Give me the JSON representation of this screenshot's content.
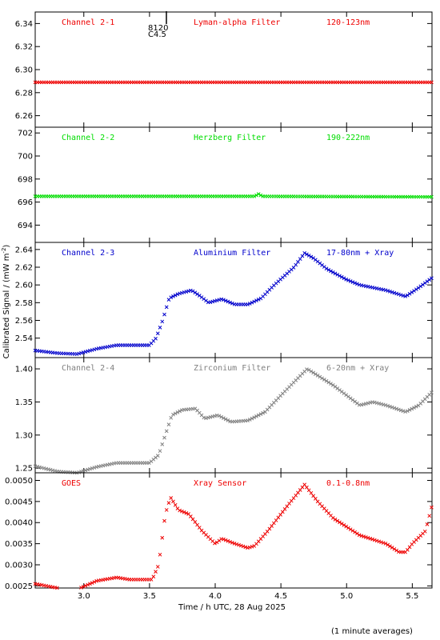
{
  "axes": {
    "ylabel_main": "Calibrated Signal / (mW m",
    "ylabel_sup": "-2",
    "ylabel_close": ")",
    "xlabel": "Time / h UTC, 28 Aug 2025",
    "footer": "(1 minute averages)",
    "xlim": [
      2.63,
      5.65
    ],
    "xticks": [
      3.0,
      3.5,
      4.0,
      4.5,
      5.0,
      5.5
    ],
    "xtick_labels": [
      "3.0",
      "3.5",
      "4.0",
      "4.5",
      "5.0",
      "5.5"
    ]
  },
  "marker_annotation": {
    "line1": "8120",
    "line2": "C4.5"
  },
  "chart_data": [
    {
      "type": "scatter",
      "label_left": "Channel 2-1",
      "label_mid": "Lyman-alpha Filter",
      "label_right": "120-123nm",
      "color": "#ee0000",
      "ylim": [
        6.25,
        6.35
      ],
      "yticks": [
        6.26,
        6.28,
        6.3,
        6.32,
        6.34
      ],
      "ytick_labels": [
        "6.26",
        "6.28",
        "6.30",
        "6.32",
        "6.34"
      ],
      "knots": [
        [
          2.63,
          6.289
        ],
        [
          5.65,
          6.289
        ]
      ]
    },
    {
      "type": "scatter",
      "label_left": "Channel 2-2",
      "label_mid": "Herzberg Filter",
      "label_right": "190-222nm",
      "color": "#00dd00",
      "ylim": [
        692.5,
        702.5
      ],
      "yticks": [
        694,
        696,
        698,
        700,
        702
      ],
      "ytick_labels": [
        "694",
        "696",
        "698",
        "700",
        "702"
      ],
      "knots": [
        [
          2.63,
          696.5
        ],
        [
          4.3,
          696.5
        ],
        [
          4.33,
          696.7
        ],
        [
          4.36,
          696.5
        ],
        [
          5.65,
          696.45
        ]
      ]
    },
    {
      "type": "scatter",
      "label_left": "Channel 2-3",
      "label_mid": "Aluminium Filter",
      "label_right": "17-80nm + Xray",
      "color": "#0000cc",
      "ylim": [
        2.518,
        2.648
      ],
      "yticks": [
        2.54,
        2.56,
        2.58,
        2.6,
        2.62,
        2.64
      ],
      "ytick_labels": [
        "2.54",
        "2.56",
        "2.58",
        "2.60",
        "2.62",
        "2.64"
      ],
      "knots": [
        [
          2.63,
          2.526
        ],
        [
          2.8,
          2.523
        ],
        [
          2.95,
          2.522
        ],
        [
          3.1,
          2.528
        ],
        [
          3.25,
          2.532
        ],
        [
          3.5,
          2.532
        ],
        [
          3.55,
          2.54
        ],
        [
          3.6,
          2.56
        ],
        [
          3.65,
          2.585
        ],
        [
          3.72,
          2.59
        ],
        [
          3.82,
          2.594
        ],
        [
          3.88,
          2.588
        ],
        [
          3.95,
          2.58
        ],
        [
          4.05,
          2.584
        ],
        [
          4.15,
          2.578
        ],
        [
          4.25,
          2.578
        ],
        [
          4.35,
          2.585
        ],
        [
          4.45,
          2.6
        ],
        [
          4.6,
          2.62
        ],
        [
          4.68,
          2.636
        ],
        [
          4.75,
          2.63
        ],
        [
          4.85,
          2.618
        ],
        [
          5.0,
          2.606
        ],
        [
          5.1,
          2.6
        ],
        [
          5.2,
          2.597
        ],
        [
          5.3,
          2.594
        ],
        [
          5.45,
          2.587
        ],
        [
          5.55,
          2.597
        ],
        [
          5.65,
          2.608
        ]
      ]
    },
    {
      "type": "scatter",
      "label_left": "Channel 2-4",
      "label_mid": "Zirconium Filter",
      "label_right": "6-20nm + Xray",
      "color": "#808080",
      "ylim": [
        1.243,
        1.417
      ],
      "yticks": [
        1.25,
        1.3,
        1.35,
        1.4
      ],
      "ytick_labels": [
        "1.25",
        "1.30",
        "1.35",
        "1.40"
      ],
      "knots": [
        [
          2.63,
          1.253
        ],
        [
          2.8,
          1.245
        ],
        [
          2.95,
          1.243
        ],
        [
          3.1,
          1.252
        ],
        [
          3.25,
          1.258
        ],
        [
          3.5,
          1.258
        ],
        [
          3.57,
          1.27
        ],
        [
          3.62,
          1.3
        ],
        [
          3.67,
          1.33
        ],
        [
          3.75,
          1.338
        ],
        [
          3.85,
          1.34
        ],
        [
          3.92,
          1.325
        ],
        [
          4.02,
          1.33
        ],
        [
          4.12,
          1.32
        ],
        [
          4.25,
          1.322
        ],
        [
          4.38,
          1.335
        ],
        [
          4.5,
          1.36
        ],
        [
          4.6,
          1.38
        ],
        [
          4.7,
          1.4
        ],
        [
          4.78,
          1.39
        ],
        [
          4.9,
          1.375
        ],
        [
          5.0,
          1.36
        ],
        [
          5.1,
          1.345
        ],
        [
          5.2,
          1.35
        ],
        [
          5.3,
          1.345
        ],
        [
          5.45,
          1.335
        ],
        [
          5.55,
          1.345
        ],
        [
          5.65,
          1.365
        ]
      ]
    },
    {
      "type": "scatter",
      "label_left": "GOES",
      "label_mid": "Xray Sensor",
      "label_right": "0.1-0.8nm",
      "color": "#ee0000",
      "ylim": [
        0.00245,
        0.00518
      ],
      "yticks": [
        0.0025,
        0.003,
        0.0035,
        0.004,
        0.0045,
        0.005
      ],
      "ytick_labels": [
        "0.0025",
        "0.0030",
        "0.0035",
        "0.0040",
        "0.0045",
        "0.0050"
      ],
      "knots": [
        [
          2.63,
          0.00255
        ],
        [
          2.8,
          0.00245
        ],
        [
          2.95,
          0.00242
        ],
        [
          3.1,
          0.00262
        ],
        [
          3.25,
          0.0027
        ],
        [
          3.35,
          0.00265
        ],
        [
          3.52,
          0.00265
        ],
        [
          3.57,
          0.003
        ],
        [
          3.62,
          0.0042
        ],
        [
          3.66,
          0.0046
        ],
        [
          3.72,
          0.0043
        ],
        [
          3.8,
          0.0042
        ],
        [
          3.9,
          0.0038
        ],
        [
          4.0,
          0.0035
        ],
        [
          4.05,
          0.00362
        ],
        [
          4.15,
          0.0035
        ],
        [
          4.25,
          0.0034
        ],
        [
          4.3,
          0.00345
        ],
        [
          4.4,
          0.0038
        ],
        [
          4.55,
          0.0044
        ],
        [
          4.68,
          0.0049
        ],
        [
          4.78,
          0.0045
        ],
        [
          4.9,
          0.0041
        ],
        [
          5.0,
          0.0039
        ],
        [
          5.1,
          0.0037
        ],
        [
          5.2,
          0.0036
        ],
        [
          5.3,
          0.0035
        ],
        [
          5.4,
          0.0033
        ],
        [
          5.45,
          0.0033
        ],
        [
          5.5,
          0.0035
        ],
        [
          5.6,
          0.0038
        ],
        [
          5.65,
          0.0044
        ]
      ]
    }
  ]
}
